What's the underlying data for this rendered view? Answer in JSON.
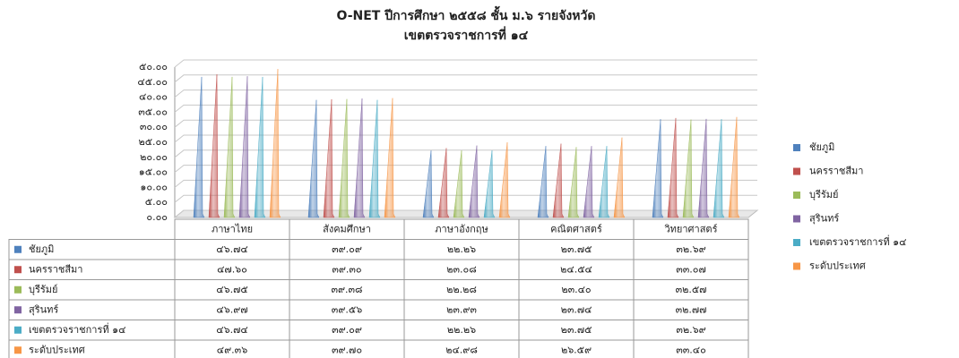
{
  "chart_data": {
    "type": "cone-bar",
    "title": "O-NET ปีการศึกษา ๒๕๕๘ ชั้น ม.๖ รายจังหวัด",
    "subtitle": "เขตตรวจราชการที่ ๑๔",
    "categories": [
      "ภาษาไทย",
      "สังคมศึกษา",
      "ภาษาอังกฤษ",
      "คณิตศาสตร์",
      "วิทยาศาสตร์"
    ],
    "series": [
      {
        "name": "ชัยภูมิ",
        "color": "#4f81bd",
        "values": [
          46.74,
          39.09,
          22.26,
          23.75,
          32.69
        ],
        "value_labels": [
          "๔๖.๗๔",
          "๓๙.๐๙",
          "๒๒.๒๖",
          "๒๓.๗๕",
          "๓๒.๖๙"
        ]
      },
      {
        "name": "นครราชสีมา",
        "color": "#c0504d",
        "values": [
          47.6,
          39.3,
          23.08,
          24.54,
          33.07
        ],
        "value_labels": [
          "๔๗.๖๐",
          "๓๙.๓๐",
          "๒๓.๐๘",
          "๒๔.๕๔",
          "๓๓.๐๗"
        ]
      },
      {
        "name": "บุรีรัมย์",
        "color": "#9bbb59",
        "values": [
          46.75,
          39.38,
          22.28,
          23.4,
          32.57
        ],
        "value_labels": [
          "๔๖.๗๕",
          "๓๙.๓๘",
          "๒๒.๒๘",
          "๒๓.๔๐",
          "๓๒.๕๗"
        ]
      },
      {
        "name": "สุรินทร์",
        "color": "#8064a2",
        "values": [
          46.97,
          39.56,
          23.93,
          23.74,
          32.77
        ],
        "value_labels": [
          "๔๖.๙๗",
          "๓๙.๕๖",
          "๒๓.๙๓",
          "๒๓.๗๔",
          "๓๒.๗๗"
        ]
      },
      {
        "name": "เขตตรวจราชการที่ ๑๔",
        "color": "#4bacc6",
        "values": [
          46.74,
          39.09,
          22.26,
          23.75,
          32.69
        ],
        "value_labels": [
          "๔๖.๗๔",
          "๓๙.๐๙",
          "๒๒.๒๖",
          "๒๓.๗๕",
          "๓๒.๖๙"
        ]
      },
      {
        "name": "ระดับประเทศ",
        "color": "#f79646",
        "values": [
          49.36,
          39.7,
          24.98,
          26.59,
          33.4
        ],
        "value_labels": [
          "๔๙.๓๖",
          "๓๙.๗๐",
          "๒๔.๙๘",
          "๒๖.๕๙",
          "๓๓.๔๐"
        ]
      }
    ],
    "ylim": [
      0,
      50
    ],
    "yticks": [
      {
        "value": 0,
        "label": "๐.๐๐"
      },
      {
        "value": 5,
        "label": "๕.๐๐"
      },
      {
        "value": 10,
        "label": "๑๐.๐๐"
      },
      {
        "value": 15,
        "label": "๑๕.๐๐"
      },
      {
        "value": 20,
        "label": "๒๐.๐๐"
      },
      {
        "value": 25,
        "label": "๒๕.๐๐"
      },
      {
        "value": 30,
        "label": "๓๐.๐๐"
      },
      {
        "value": 35,
        "label": "๓๕.๐๐"
      },
      {
        "value": 40,
        "label": "๔๐.๐๐"
      },
      {
        "value": 45,
        "label": "๔๕.๐๐"
      },
      {
        "value": 50,
        "label": "๕๐.๐๐"
      }
    ],
    "grid": true,
    "legend": "right"
  }
}
